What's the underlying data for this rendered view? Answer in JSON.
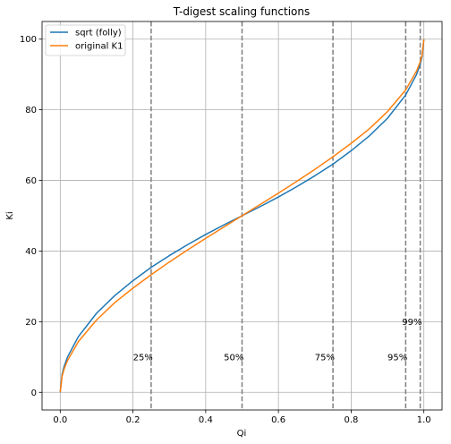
{
  "chart_data": {
    "type": "line",
    "title": "T-digest scaling functions",
    "xlabel": "Qi",
    "ylabel": "Ki",
    "xlim": [
      -0.05,
      1.05
    ],
    "ylim": [
      -5,
      105
    ],
    "xticks": [
      0.0,
      0.2,
      0.4,
      0.6,
      0.8,
      1.0
    ],
    "xtick_labels": [
      "0.0",
      "0.2",
      "0.4",
      "0.6",
      "0.8",
      "1.0"
    ],
    "yticks": [
      0,
      20,
      40,
      60,
      80,
      100
    ],
    "ytick_labels": [
      "0",
      "20",
      "40",
      "60",
      "80",
      "100"
    ],
    "grid": true,
    "legend_position": "top-left",
    "series": [
      {
        "name": "sqrt (folly)",
        "color": "#1f77b4",
        "x": [
          0.0,
          0.005,
          0.01,
          0.02,
          0.05,
          0.1,
          0.15,
          0.2,
          0.25,
          0.3,
          0.35,
          0.4,
          0.45,
          0.5,
          0.55,
          0.6,
          0.65,
          0.7,
          0.75,
          0.8,
          0.85,
          0.9,
          0.95,
          0.98,
          0.99,
          0.995,
          1.0
        ],
        "y": [
          0.0,
          5.0,
          7.1,
          10.0,
          15.8,
          22.4,
          27.4,
          31.6,
          35.4,
          38.7,
          41.8,
          44.7,
          47.4,
          50.0,
          52.6,
          55.3,
          58.2,
          61.3,
          64.6,
          68.4,
          72.6,
          77.6,
          84.2,
          90.0,
          92.9,
          95.0,
          100.0
        ]
      },
      {
        "name": "original K1",
        "color": "#ff7f0e",
        "x": [
          0.0,
          0.005,
          0.01,
          0.02,
          0.05,
          0.1,
          0.15,
          0.2,
          0.25,
          0.3,
          0.35,
          0.4,
          0.45,
          0.5,
          0.55,
          0.6,
          0.65,
          0.7,
          0.75,
          0.8,
          0.85,
          0.9,
          0.95,
          0.98,
          0.99,
          0.995,
          1.0
        ],
        "y": [
          0.0,
          4.5,
          6.4,
          9.0,
          14.4,
          20.5,
          25.4,
          29.5,
          33.3,
          36.9,
          40.3,
          43.6,
          46.8,
          50.0,
          53.2,
          56.4,
          59.7,
          63.1,
          66.7,
          70.5,
          74.6,
          79.5,
          85.6,
          91.0,
          93.6,
          95.5,
          100.0
        ]
      }
    ],
    "vlines": [
      {
        "x": 0.25,
        "label": "25%",
        "label_x": 0.2,
        "label_y": 10
      },
      {
        "x": 0.5,
        "label": "50%",
        "label_x": 0.45,
        "label_y": 10
      },
      {
        "x": 0.75,
        "label": "75%",
        "label_x": 0.7,
        "label_y": 10
      },
      {
        "x": 0.95,
        "label": "95%",
        "label_x": 0.9,
        "label_y": 10
      },
      {
        "x": 0.99,
        "label": "99%",
        "label_x": 0.94,
        "label_y": 20
      }
    ],
    "vline_color": "#7f7f7f"
  }
}
